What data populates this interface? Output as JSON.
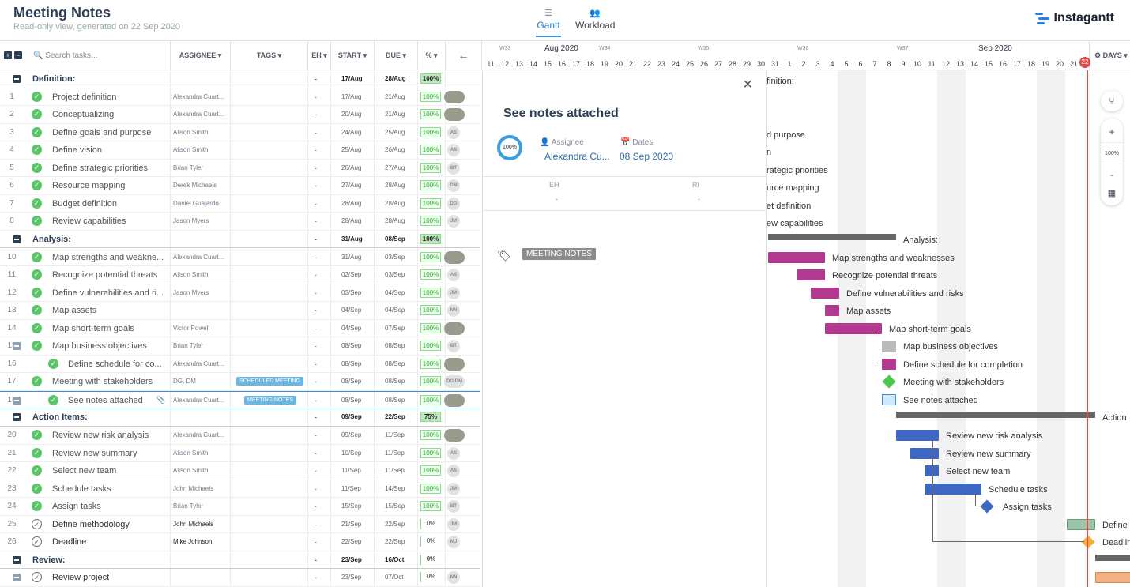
{
  "header": {
    "title": "Meeting Notes",
    "subtitle": "Read-only view, generated on 22 Sep 2020",
    "nav_gantt": "Gantt",
    "nav_workload": "Workload",
    "logo": "Instagantt"
  },
  "columns": {
    "search_placeholder": "Search tasks...",
    "assignee": "ASSIGNEE",
    "tags": "TAGS",
    "eh": "EH",
    "start": "START",
    "due": "DUE",
    "pct": "%",
    "days": "DAYS"
  },
  "timeline": {
    "weeks": [
      "W33",
      "W34",
      "W35",
      "W36",
      "W37"
    ],
    "months": [
      "Aug 2020",
      "Sep 2020"
    ],
    "days": [
      "11",
      "12",
      "13",
      "14",
      "15",
      "16",
      "17",
      "18",
      "19",
      "20",
      "21",
      "22",
      "23",
      "24",
      "25",
      "26",
      "27",
      "28",
      "29",
      "30",
      "31",
      "1",
      "2",
      "3",
      "4",
      "5",
      "6",
      "7",
      "8",
      "9",
      "10",
      "11",
      "12",
      "13",
      "14",
      "15",
      "16",
      "17",
      "18",
      "19",
      "20",
      "21"
    ],
    "today": "22"
  },
  "rows": [
    {
      "type": "group",
      "name": "Definition:",
      "eh": "-",
      "start": "17/Aug",
      "due": "28/Aug",
      "pct": "100%"
    },
    {
      "num": "1",
      "name": "Project definition",
      "assignee": "Alexandra Cuart...",
      "eh": "-",
      "start": "17/Aug",
      "due": "21/Aug",
      "pct": "100%",
      "avatar": "photo"
    },
    {
      "num": "2",
      "name": "Conceptualizing",
      "assignee": "Alexandra Cuart...",
      "eh": "-",
      "start": "20/Aug",
      "due": "21/Aug",
      "pct": "100%",
      "avatar": "photo"
    },
    {
      "num": "3",
      "name": "Define goals and purpose",
      "assignee": "Alison Smith",
      "eh": "-",
      "start": "24/Aug",
      "due": "25/Aug",
      "pct": "100%",
      "avatar": "AS"
    },
    {
      "num": "4",
      "name": "Define vision",
      "assignee": "Alison Smith",
      "eh": "-",
      "start": "25/Aug",
      "due": "26/Aug",
      "pct": "100%",
      "avatar": "AS"
    },
    {
      "num": "5",
      "name": "Define strategic priorities",
      "assignee": "Brian Tyler",
      "eh": "-",
      "start": "26/Aug",
      "due": "27/Aug",
      "pct": "100%",
      "avatar": "BT"
    },
    {
      "num": "6",
      "name": "Resource mapping",
      "assignee": "Derek Michaels",
      "eh": "-",
      "start": "27/Aug",
      "due": "28/Aug",
      "pct": "100%",
      "avatar": "DM"
    },
    {
      "num": "7",
      "name": "Budget definition",
      "assignee": "Daniel Guajardo",
      "eh": "-",
      "start": "28/Aug",
      "due": "28/Aug",
      "pct": "100%",
      "avatar": "DG"
    },
    {
      "num": "8",
      "name": "Review capabilities",
      "assignee": "Jason Myers",
      "eh": "-",
      "start": "28/Aug",
      "due": "28/Aug",
      "pct": "100%",
      "avatar": "JM"
    },
    {
      "type": "group",
      "name": "Analysis:",
      "eh": "-",
      "start": "31/Aug",
      "due": "08/Sep",
      "pct": "100%"
    },
    {
      "num": "10",
      "name": "Map strengths and weakne...",
      "assignee": "Alexandra Cuart...",
      "eh": "-",
      "start": "31/Aug",
      "due": "03/Sep",
      "pct": "100%",
      "avatar": "photo"
    },
    {
      "num": "11",
      "name": "Recognize potential threats",
      "assignee": "Alison Smith",
      "eh": "-",
      "start": "02/Sep",
      "due": "03/Sep",
      "pct": "100%",
      "avatar": "AS"
    },
    {
      "num": "12",
      "name": "Define vulnerabilities and ri...",
      "assignee": "Jason Myers",
      "eh": "-",
      "start": "03/Sep",
      "due": "04/Sep",
      "pct": "100%",
      "avatar": "JM"
    },
    {
      "num": "13",
      "name": "Map assets",
      "assignee": "",
      "eh": "-",
      "start": "04/Sep",
      "due": "04/Sep",
      "pct": "100%",
      "avatar": "NN"
    },
    {
      "num": "14",
      "name": "Map short-term goals",
      "assignee": "Victor Powell",
      "eh": "-",
      "start": "04/Sep",
      "due": "07/Sep",
      "pct": "100%",
      "avatar": "photo"
    },
    {
      "num": "15",
      "name": "Map business objectives",
      "assignee": "Brian Tyler",
      "eh": "-",
      "start": "08/Sep",
      "due": "08/Sep",
      "pct": "100%",
      "avatar": "BT",
      "subgroup": true
    },
    {
      "num": "16",
      "name": "Define schedule for co...",
      "assignee": "Alexandra Cuart...",
      "eh": "-",
      "start": "08/Sep",
      "due": "08/Sep",
      "pct": "100%",
      "avatar": "photo",
      "indent": true
    },
    {
      "num": "17",
      "name": "Meeting with stakeholders",
      "assignee": "DG, DM",
      "tag": "SCHEDULED MEETING",
      "eh": "-",
      "start": "08/Sep",
      "due": "08/Sep",
      "pct": "100%",
      "avatar": "DG DM"
    },
    {
      "num": "18",
      "name": "See notes attached",
      "assignee": "Alexandra Cuart...",
      "tag": "MEETING NOTES",
      "eh": "-",
      "start": "08/Sep",
      "due": "08/Sep",
      "pct": "100%",
      "avatar": "photo",
      "indent": true,
      "selected": true,
      "subgroup": true
    },
    {
      "type": "group",
      "name": "Action Items:",
      "eh": "-",
      "start": "09/Sep",
      "due": "22/Sep",
      "pct": "75%"
    },
    {
      "num": "20",
      "name": "Review new risk analysis",
      "assignee": "Alexandra Cuart...",
      "eh": "-",
      "start": "09/Sep",
      "due": "11/Sep",
      "pct": "100%",
      "avatar": "photo"
    },
    {
      "num": "21",
      "name": "Review new summary",
      "assignee": "Alison Smith",
      "eh": "-",
      "start": "10/Sep",
      "due": "11/Sep",
      "pct": "100%",
      "avatar": "AS"
    },
    {
      "num": "22",
      "name": "Select new team",
      "assignee": "Alison Smith",
      "eh": "-",
      "start": "11/Sep",
      "due": "11/Sep",
      "pct": "100%",
      "avatar": "AS"
    },
    {
      "num": "23",
      "name": "Schedule tasks",
      "assignee": "John Michaels",
      "eh": "-",
      "start": "11/Sep",
      "due": "14/Sep",
      "pct": "100%",
      "avatar": "JM"
    },
    {
      "num": "24",
      "name": "Assign tasks",
      "assignee": "Brian Tyler",
      "eh": "-",
      "start": "15/Sep",
      "due": "15/Sep",
      "pct": "100%",
      "avatar": "BT"
    },
    {
      "num": "25",
      "name": "Define methodology",
      "assignee": "John Michaels",
      "eh": "-",
      "start": "21/Sep",
      "due": "22/Sep",
      "pct": "0%",
      "avatar": "JM",
      "open": true
    },
    {
      "num": "26",
      "name": "Deadline",
      "assignee": "Mike Johnson",
      "eh": "-",
      "start": "22/Sep",
      "due": "22/Sep",
      "pct": "0%",
      "avatar": "MJ",
      "open": true
    },
    {
      "type": "group",
      "name": "Review:",
      "eh": "-",
      "start": "23/Sep",
      "due": "16/Oct",
      "pct": "0%"
    },
    {
      "num": "",
      "name": "Review project",
      "assignee": "",
      "eh": "-",
      "start": "23/Sep",
      "due": "07/Oct",
      "pct": "0%",
      "avatar": "NN",
      "open": true,
      "subgroup": true
    }
  ],
  "panel": {
    "title": "See notes attached",
    "progress": "100%",
    "assignee_label": "Assignee",
    "assignee_value": "Alexandra Cu...",
    "dates_label": "Dates",
    "dates_value": "08 Sep 2020",
    "eh_label": "EH",
    "eh_value": "-",
    "ri_label": "RI",
    "ri_value": "-",
    "tag": "MEETING NOTES"
  },
  "chart_labels": {
    "partial_labels": [
      "finition:",
      "d purpose",
      "n",
      "rategic priorities",
      "urce mapping",
      "et definition",
      "ew capabilities"
    ],
    "analysis": "Analysis:",
    "tasks_analysis": [
      "Map strengths and weaknesses",
      "Recognize potential threats",
      "Define vulnerabilities and risks",
      "Map assets",
      "Map short-term goals",
      "Map business objectives",
      "Define schedule for completion",
      "Meeting with stakeholders",
      "See notes attached"
    ],
    "action": "Action",
    "tasks_action": [
      "Review new risk analysis",
      "Review new summary",
      "Select new team",
      "Schedule tasks",
      "Assign tasks",
      "Define",
      "Deadlin"
    ]
  },
  "tools": {
    "zoom": "100%"
  },
  "colors": {
    "accent": "#3a8fd8",
    "magenta": "#b23a8e",
    "blue": "#3d67c2",
    "green": "#5cc56a",
    "today": "#e14b4b",
    "orange": "#f2b134"
  }
}
